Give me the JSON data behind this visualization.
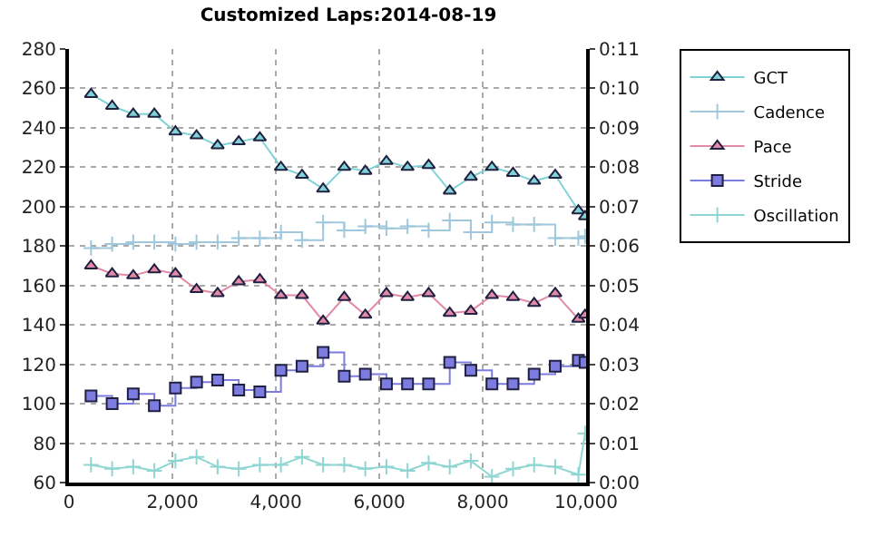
{
  "chart_data": {
    "type": "line",
    "title": "Customized Laps:2014-08-19",
    "x": [
      427,
      835,
      1243,
      1651,
      2059,
      2467,
      2875,
      3283,
      3691,
      4099,
      4507,
      4915,
      5323,
      5731,
      6139,
      6547,
      6955,
      7363,
      7771,
      8179,
      8587,
      8995,
      9403,
      9850,
      9980
    ],
    "series": [
      {
        "name": "GCT",
        "marker": "triangle",
        "color": "#7fd3d6",
        "values": [
          257,
          251,
          247,
          247,
          238,
          236,
          231,
          233,
          235,
          220,
          216,
          209,
          220,
          218,
          223,
          220,
          221,
          208,
          215,
          220,
          217,
          213,
          216,
          198,
          195
        ]
      },
      {
        "name": "Cadence",
        "type": "step",
        "marker": "cross",
        "color": "#9fc8dc",
        "values": [
          179,
          181,
          182,
          182,
          181,
          182,
          182,
          184,
          184,
          187,
          183,
          192,
          188,
          190,
          189,
          190,
          188,
          193,
          187,
          192,
          191,
          191,
          184,
          184,
          185
        ]
      },
      {
        "name": "Pace",
        "marker": "triangle",
        "color": "#e38aa8",
        "values": [
          170,
          166,
          165,
          168,
          166,
          158,
          156,
          162,
          163,
          155,
          155,
          142,
          154,
          145,
          156,
          154,
          156,
          146,
          147,
          155,
          154,
          151,
          156,
          143,
          145
        ]
      },
      {
        "name": "Stride",
        "type": "step",
        "marker": "square",
        "color": "#7b7be0",
        "values": [
          104,
          100,
          105,
          99,
          108,
          111,
          112,
          107,
          106,
          117,
          119,
          126,
          114,
          115,
          110,
          110,
          110,
          121,
          117,
          110,
          110,
          115,
          119,
          122,
          121
        ]
      },
      {
        "name": "Oscillation",
        "marker": "cross",
        "color": "#8fd6d3",
        "values": [
          69,
          67,
          68,
          66,
          71,
          73,
          68,
          67,
          69,
          69,
          73,
          69,
          69,
          67,
          68,
          66,
          70,
          68,
          71,
          63,
          67,
          69,
          68,
          64,
          85
        ]
      }
    ],
    "xlim": [
      0,
      10000
    ],
    "xticks": [
      {
        "value": 0,
        "label": "0"
      },
      {
        "value": 2000,
        "label": "2,000"
      },
      {
        "value": 4000,
        "label": "4,000"
      },
      {
        "value": 6000,
        "label": "6,000"
      },
      {
        "value": 8000,
        "label": "8,000"
      },
      {
        "value": 10000,
        "label": "10,000"
      }
    ],
    "ylim": [
      60,
      280
    ],
    "yticks": [
      60,
      80,
      100,
      120,
      140,
      160,
      180,
      200,
      220,
      240,
      260,
      280
    ],
    "y2lim": [
      0,
      11
    ],
    "y2ticks": [
      {
        "value": 0,
        "label": "0:00"
      },
      {
        "value": 1,
        "label": "0:01"
      },
      {
        "value": 2,
        "label": "0:02"
      },
      {
        "value": 3,
        "label": "0:03"
      },
      {
        "value": 4,
        "label": "0:04"
      },
      {
        "value": 5,
        "label": "0:05"
      },
      {
        "value": 6,
        "label": "0:06"
      },
      {
        "value": 7,
        "label": "0:07"
      },
      {
        "value": 8,
        "label": "0:08"
      },
      {
        "value": 9,
        "label": "0:09"
      },
      {
        "value": 10,
        "label": "0:10"
      },
      {
        "value": 11,
        "label": "0:11"
      }
    ],
    "grid": true,
    "legend": "top right",
    "line_style": "solid"
  }
}
